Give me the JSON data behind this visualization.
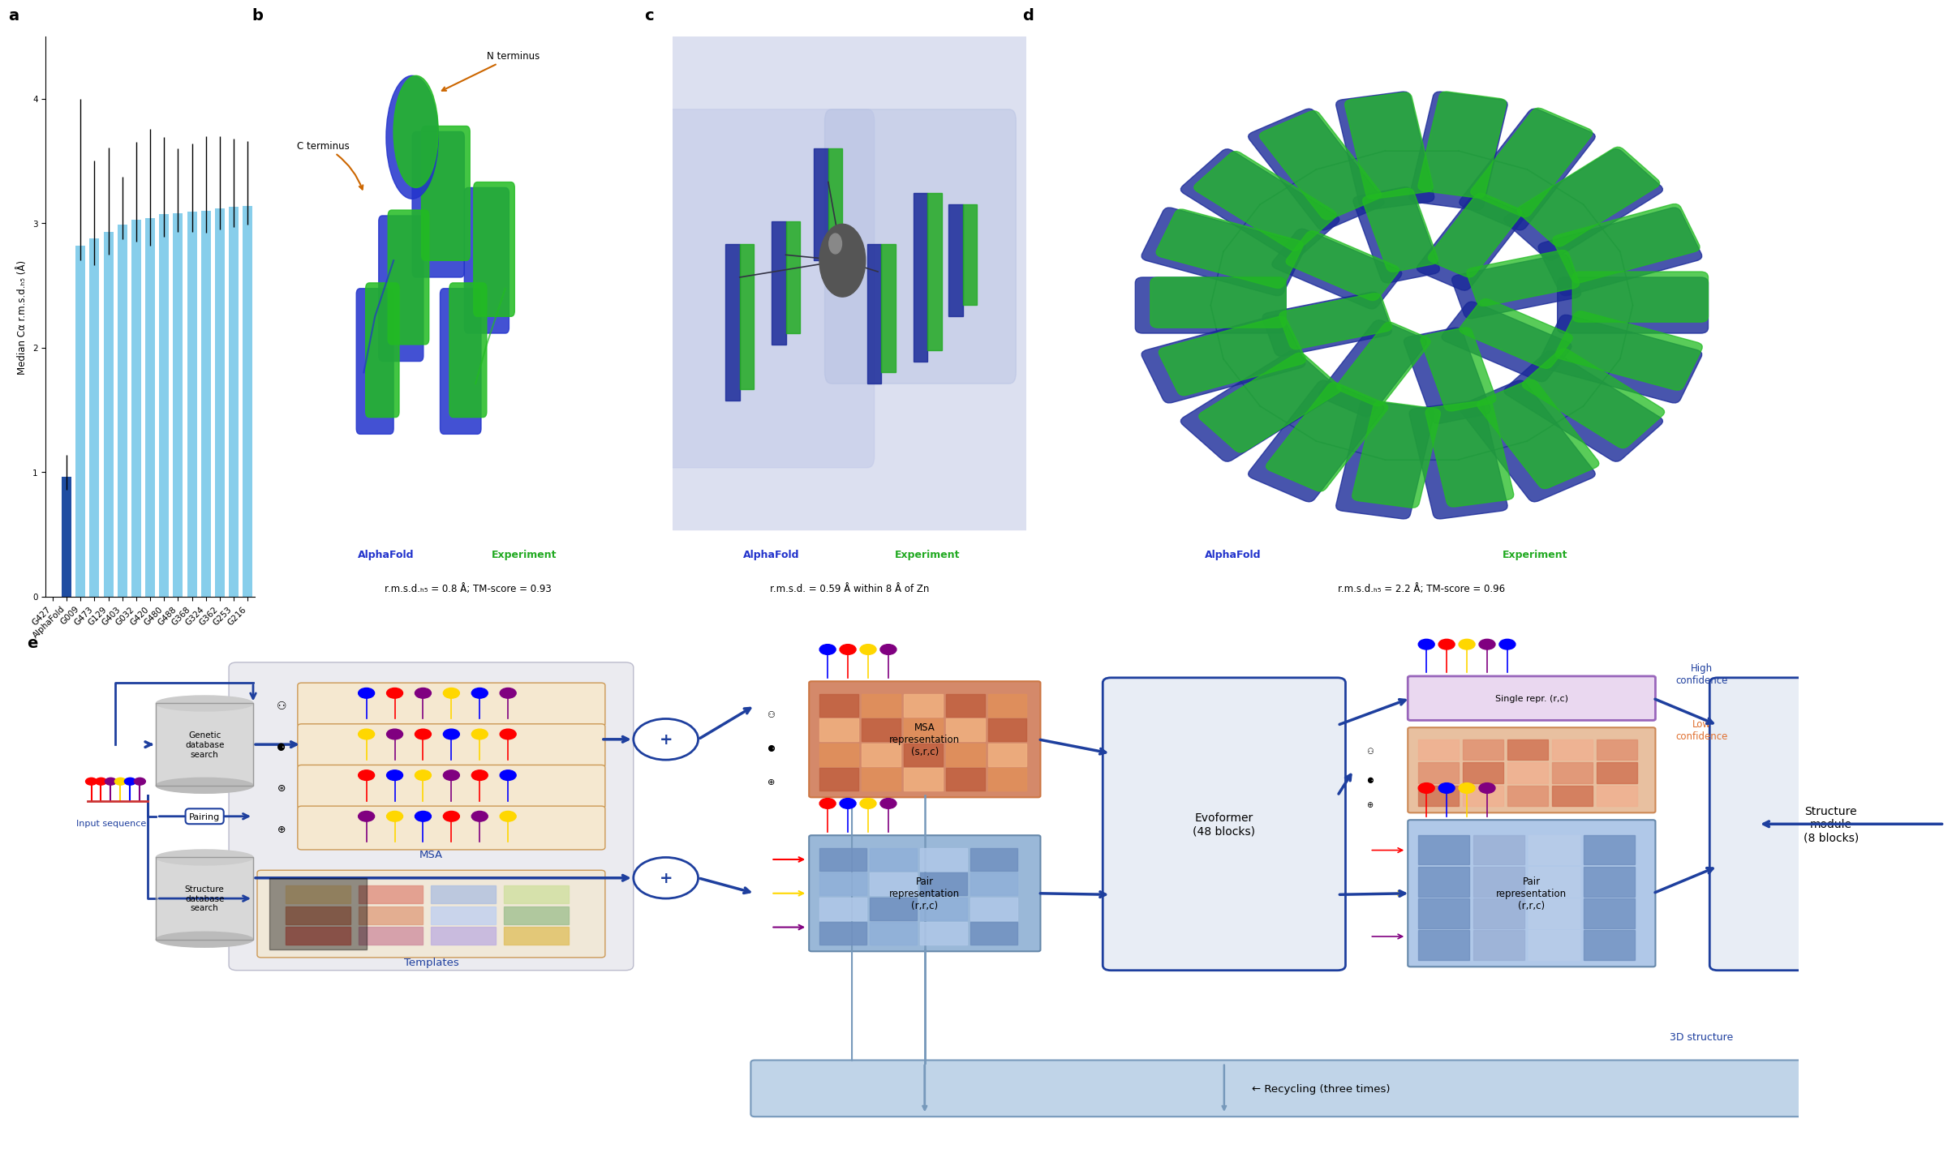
{
  "panel_a": {
    "categories": [
      "G427",
      "AlphaFold",
      "G009",
      "G473",
      "G129",
      "G403",
      "G032",
      "G420",
      "G480",
      "G488",
      "G368",
      "G324",
      "G362",
      "G253",
      "G216"
    ],
    "values": [
      0.0,
      0.96,
      2.82,
      2.88,
      2.93,
      2.99,
      3.03,
      3.04,
      3.07,
      3.08,
      3.09,
      3.1,
      3.12,
      3.13,
      3.14
    ],
    "errors_upper": [
      0.0,
      0.18,
      1.18,
      0.62,
      0.68,
      0.38,
      0.62,
      0.72,
      0.62,
      0.52,
      0.55,
      0.6,
      0.58,
      0.55,
      0.52
    ],
    "errors_lower": [
      0.0,
      0.1,
      0.12,
      0.22,
      0.18,
      0.12,
      0.18,
      0.22,
      0.18,
      0.15,
      0.16,
      0.18,
      0.17,
      0.16,
      0.15
    ],
    "bar_colors": [
      "white",
      "#1f4da1",
      "#87ceeb",
      "#87ceeb",
      "#87ceeb",
      "#87ceeb",
      "#87ceeb",
      "#87ceeb",
      "#87ceeb",
      "#87ceeb",
      "#87ceeb",
      "#87ceeb",
      "#87ceeb",
      "#87ceeb",
      "#87ceeb"
    ],
    "ylabel": "Median Cα r.m.s.d.ₕ₅ (Å)",
    "ylim": [
      0,
      4.5
    ],
    "yticks": [
      0,
      1,
      2,
      3,
      4
    ]
  },
  "panel_b": {
    "alphafold_label": "AlphaFold",
    "experiment_label": "Experiment",
    "subtitle": "r.m.s.d.ₕ₅ = 0.8 Å; TM-score = 0.93",
    "n_terminus": "N terminus",
    "c_terminus": "C terminus"
  },
  "panel_c": {
    "alphafold_label": "AlphaFold",
    "experiment_label": "Experiment",
    "subtitle": "r.m.s.d. = 0.59 Å within 8 Å of Zn"
  },
  "panel_d": {
    "alphafold_label": "AlphaFold",
    "experiment_label": "Experiment",
    "subtitle": "r.m.s.d.ₕ₅ = 2.2 Å; TM-score = 0.96"
  },
  "panel_e": {
    "input_label": "Input sequence",
    "genetic_db": "Genetic\ndatabase\nsearch",
    "structure_db": "Structure\ndatabase\nsearch",
    "pairing_label": "Pairing",
    "msa_label": "MSA",
    "templates_label": "Templates",
    "msa_repr_label": "MSA\nrepresentation\n(s,r,c)",
    "pair_repr_label1": "Pair\nrepresentation\n(r,r,c)",
    "single_repr_label": "Single repr. (r,c)",
    "pair_repr_label2": "Pair\nrepresentation\n(r,r,c)",
    "evoformer_label": "Evoformer\n(48 blocks)",
    "structure_module_label": "Structure\nmodule\n(8 blocks)",
    "recycling_label": "← Recycling (three times)",
    "high_confidence": "High\nconfidence",
    "low_confidence": "Low\nconfidence",
    "output_label": "3D structure"
  },
  "colors": {
    "dark_blue": "#1a3a8a",
    "light_blue": "#87ceeb",
    "arrow_blue": "#1e3f9e",
    "msa_orange_bg": "#f5deb3",
    "msa_repr_orange": "#d4896a",
    "pair_blue_bg": "#c8d8f0",
    "section_bg": "#e8ecf5",
    "recycle_blue": "#9bb8d4",
    "orange_text": "#e07030",
    "alphafold_color": "#2233cc",
    "experiment_color": "#22aa22",
    "cylinder_gray": "#cccccc",
    "cylinder_edge": "#999999"
  }
}
